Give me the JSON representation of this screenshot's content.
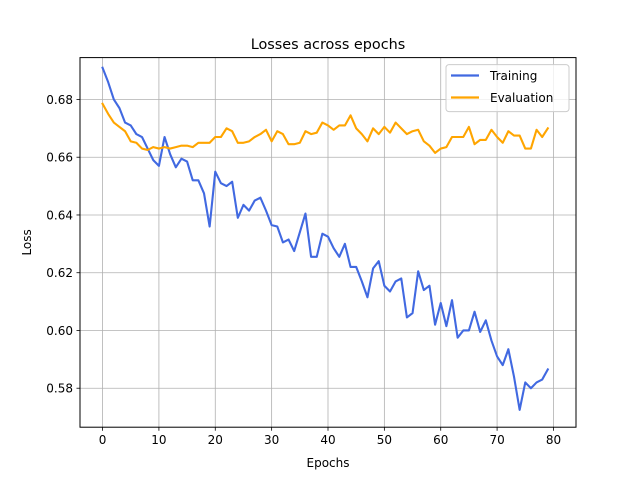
{
  "chart_data": {
    "type": "line",
    "title": "Losses across epochs",
    "xlabel": "Epochs",
    "ylabel": "Loss",
    "xlim": [
      -4,
      84
    ],
    "ylim": [
      0.5665,
      0.6945
    ],
    "x_ticks": [
      0,
      10,
      20,
      30,
      40,
      50,
      60,
      70,
      80
    ],
    "y_ticks": [
      0.58,
      0.6,
      0.62,
      0.64,
      0.66,
      0.68
    ],
    "y_tick_labels": [
      "0.58",
      "0.60",
      "0.62",
      "0.64",
      "0.66",
      "0.68"
    ],
    "grid": true,
    "legend_position": "top-right",
    "x": [
      0,
      1,
      2,
      3,
      4,
      5,
      6,
      7,
      8,
      9,
      10,
      11,
      12,
      13,
      14,
      15,
      16,
      17,
      18,
      19,
      20,
      21,
      22,
      23,
      24,
      25,
      26,
      27,
      28,
      29,
      30,
      31,
      32,
      33,
      34,
      35,
      36,
      37,
      38,
      39,
      40,
      41,
      42,
      43,
      44,
      45,
      46,
      47,
      48,
      49,
      50,
      51,
      52,
      53,
      54,
      55,
      56,
      57,
      58,
      59,
      60,
      61,
      62,
      63,
      64,
      65,
      66,
      67,
      68,
      69,
      70,
      71,
      72,
      73,
      74,
      75,
      76,
      77,
      78,
      79
    ],
    "series": [
      {
        "name": "Training",
        "color": "#4169e1",
        "values": [
          0.691,
          0.686,
          0.68,
          0.677,
          0.672,
          0.671,
          0.668,
          0.667,
          0.663,
          0.659,
          0.657,
          0.667,
          0.661,
          0.6565,
          0.6595,
          0.6585,
          0.652,
          0.652,
          0.6475,
          0.636,
          0.655,
          0.651,
          0.65,
          0.6515,
          0.639,
          0.6435,
          0.6415,
          0.645,
          0.646,
          0.6415,
          0.6365,
          0.636,
          0.6305,
          0.6315,
          0.6275,
          0.634,
          0.6405,
          0.6255,
          0.6255,
          0.6335,
          0.6325,
          0.6285,
          0.6255,
          0.63,
          0.622,
          0.622,
          0.617,
          0.6115,
          0.6215,
          0.624,
          0.6155,
          0.6135,
          0.617,
          0.618,
          0.6045,
          0.606,
          0.6205,
          0.614,
          0.6155,
          0.602,
          0.6095,
          0.6015,
          0.6105,
          0.5975,
          0.6,
          0.6,
          0.6065,
          0.5995,
          0.6035,
          0.5965,
          0.591,
          0.588,
          0.5935,
          0.584,
          0.5725,
          0.582,
          0.58,
          0.582,
          0.583,
          0.5865
        ]
      },
      {
        "name": "Evaluation",
        "color": "#ffa500",
        "values": [
          0.6785,
          0.675,
          0.672,
          0.6705,
          0.669,
          0.6655,
          0.665,
          0.663,
          0.6625,
          0.6635,
          0.663,
          0.6635,
          0.663,
          0.6635,
          0.664,
          0.664,
          0.6635,
          0.665,
          0.665,
          0.665,
          0.667,
          0.667,
          0.67,
          0.669,
          0.665,
          0.665,
          0.6655,
          0.667,
          0.668,
          0.6695,
          0.6655,
          0.669,
          0.668,
          0.6645,
          0.6645,
          0.665,
          0.669,
          0.668,
          0.6685,
          0.672,
          0.671,
          0.6695,
          0.671,
          0.671,
          0.6745,
          0.67,
          0.668,
          0.6655,
          0.67,
          0.668,
          0.6705,
          0.6685,
          0.672,
          0.67,
          0.668,
          0.669,
          0.6695,
          0.6655,
          0.664,
          0.6615,
          0.663,
          0.6635,
          0.667,
          0.667,
          0.667,
          0.6705,
          0.6645,
          0.666,
          0.666,
          0.6695,
          0.667,
          0.665,
          0.669,
          0.6675,
          0.6675,
          0.663,
          0.663,
          0.6695,
          0.667,
          0.67
        ]
      }
    ]
  }
}
